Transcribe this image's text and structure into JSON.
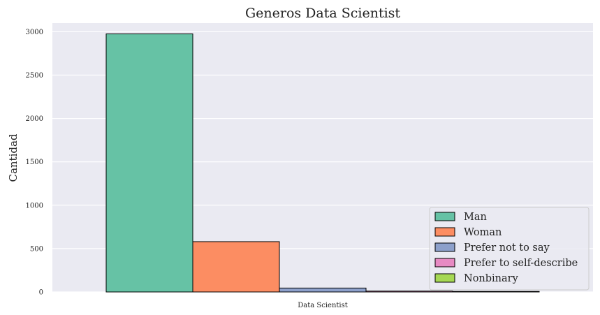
{
  "chart_data": {
    "type": "bar",
    "title": "Generos Data Scientist",
    "xlabel": "",
    "ylabel": "Cantidad",
    "categories": [
      "Data Scientist"
    ],
    "series": [
      {
        "name": "Man",
        "values": [
          2975
        ],
        "color": "#66c2a5"
      },
      {
        "name": "Woman",
        "values": [
          580
        ],
        "color": "#fc8d62"
      },
      {
        "name": "Prefer not to say",
        "values": [
          45
        ],
        "color": "#8da0cb"
      },
      {
        "name": "Prefer to self-describe",
        "values": [
          10
        ],
        "color": "#e78ac3"
      },
      {
        "name": "Nonbinary",
        "values": [
          6
        ],
        "color": "#a6d854"
      }
    ],
    "yticks": [
      0,
      500,
      1000,
      1500,
      2000,
      2500,
      3000
    ],
    "ylim": [
      0,
      3100
    ],
    "grid": true,
    "legend_position": "lower-right",
    "background": "#eaeaf2"
  }
}
